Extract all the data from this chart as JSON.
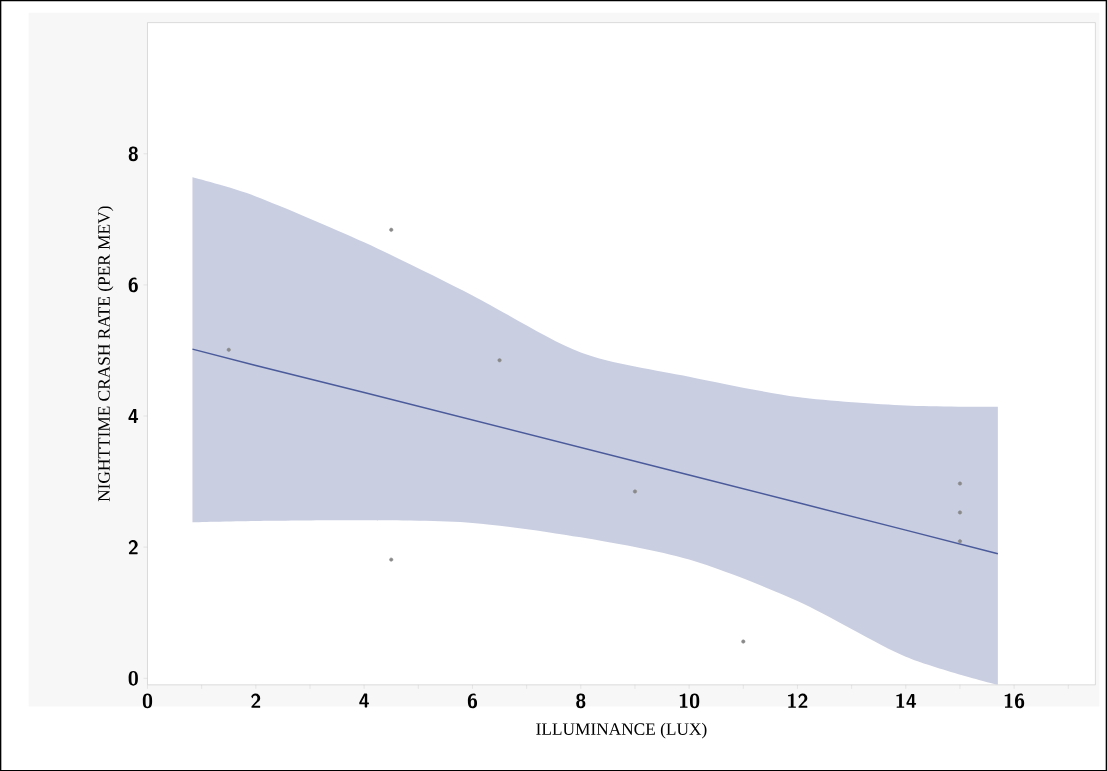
{
  "chart_data": {
    "type": "scatter",
    "xlabel": "ILLUMINANCE (LUX)",
    "ylabel": "NIGHTTIME CRASH RATE (PER MEV)",
    "xlim": [
      0,
      17.5
    ],
    "ylim": [
      -0.1,
      10
    ],
    "xticks": [
      0,
      {
        "value": 1,
        "label": null
      },
      2,
      {
        "value": 3,
        "label": null
      },
      4,
      {
        "value": 5,
        "label": null
      },
      6,
      {
        "value": 7,
        "label": null
      },
      8,
      {
        "value": 9,
        "label": null
      },
      10,
      {
        "value": 11,
        "label": null
      },
      12,
      {
        "value": 13,
        "label": null
      },
      14,
      {
        "value": 15,
        "label": null
      },
      16,
      {
        "value": 17,
        "label": null
      }
    ],
    "yticks": [
      0,
      2,
      4,
      6,
      8
    ],
    "grid": false,
    "series": [
      {
        "type": "line",
        "color": "#4a5a9a",
        "marker": "none",
        "line_style": "solid",
        "x": [
          0.83,
          2,
          4,
          6,
          8,
          10,
          12,
          14,
          15.7
        ],
        "values": [
          5.02,
          4.77,
          4.36,
          3.94,
          3.52,
          3.1,
          2.68,
          2.26,
          1.9
        ],
        "lower": [
          2.38,
          2.4,
          2.41,
          2.37,
          2.15,
          1.81,
          1.18,
          0.33,
          -0.1
        ],
        "upper": [
          7.64,
          7.35,
          6.65,
          5.84,
          4.97,
          4.6,
          4.29,
          4.16,
          4.14
        ]
      },
      {
        "color": "#8a8a8a",
        "marker": "circle",
        "x": [
          1.5,
          4.5,
          4.5,
          6.5,
          9,
          11,
          15,
          15,
          15
        ],
        "values": [
          5.01,
          6.84,
          1.81,
          4.85,
          2.85,
          0.56,
          2.97,
          2.53,
          2.09
        ]
      }
    ]
  }
}
